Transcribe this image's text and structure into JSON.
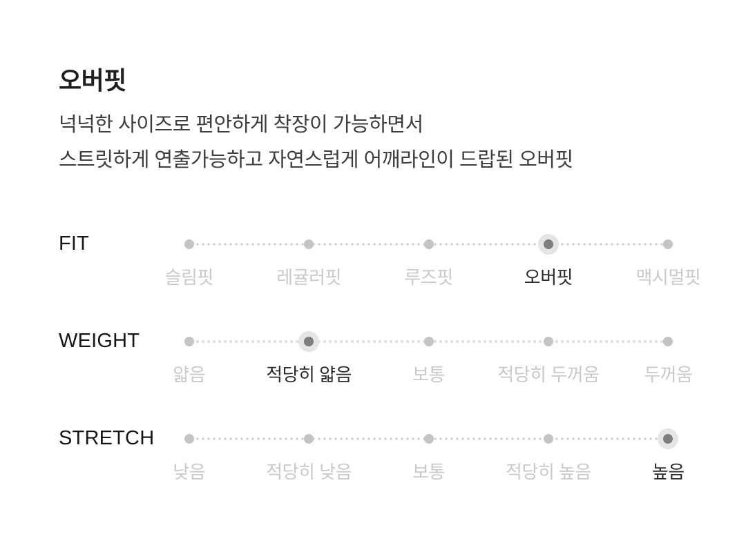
{
  "section": {
    "title": "오버핏",
    "description_line1": "넉넉한 사이즈로 편안하게 착장이 가능하면서",
    "description_line2": "스트릿하게 연출가능하고 자연스럽게 어깨라인이 드랍된 오버핏"
  },
  "colors": {
    "background": "#ffffff",
    "title_text": "#1f1f1f",
    "description_text": "#3d3d3d",
    "scale_label_text": "#161616",
    "option_muted_text": "#c9c9c9",
    "option_selected_text": "#2a2a2a",
    "dot_unselected": "#c4c4c4",
    "dot_selected": "#7e7e7e",
    "dot_selected_halo": "#e5e5e5",
    "track_dot": "#d4d4d4"
  },
  "scales": [
    {
      "id": "fit",
      "label": "FIT",
      "options": [
        "슬림핏",
        "레귤러핏",
        "루즈핏",
        "오버핏",
        "맥시멀핏"
      ],
      "selected_index": 3,
      "selected_option": "오버핏"
    },
    {
      "id": "weight",
      "label": "WEIGHT",
      "options": [
        "얇음",
        "적당히 얇음",
        "보통",
        "적당히 두꺼움",
        "두꺼움"
      ],
      "selected_index": 1,
      "selected_option": "적당히 얇음"
    },
    {
      "id": "stretch",
      "label": "STRETCH",
      "options": [
        "낮음",
        "적당히 낮음",
        "보통",
        "적당히 높음",
        "높음"
      ],
      "selected_index": 4,
      "selected_option": "높음"
    }
  ]
}
